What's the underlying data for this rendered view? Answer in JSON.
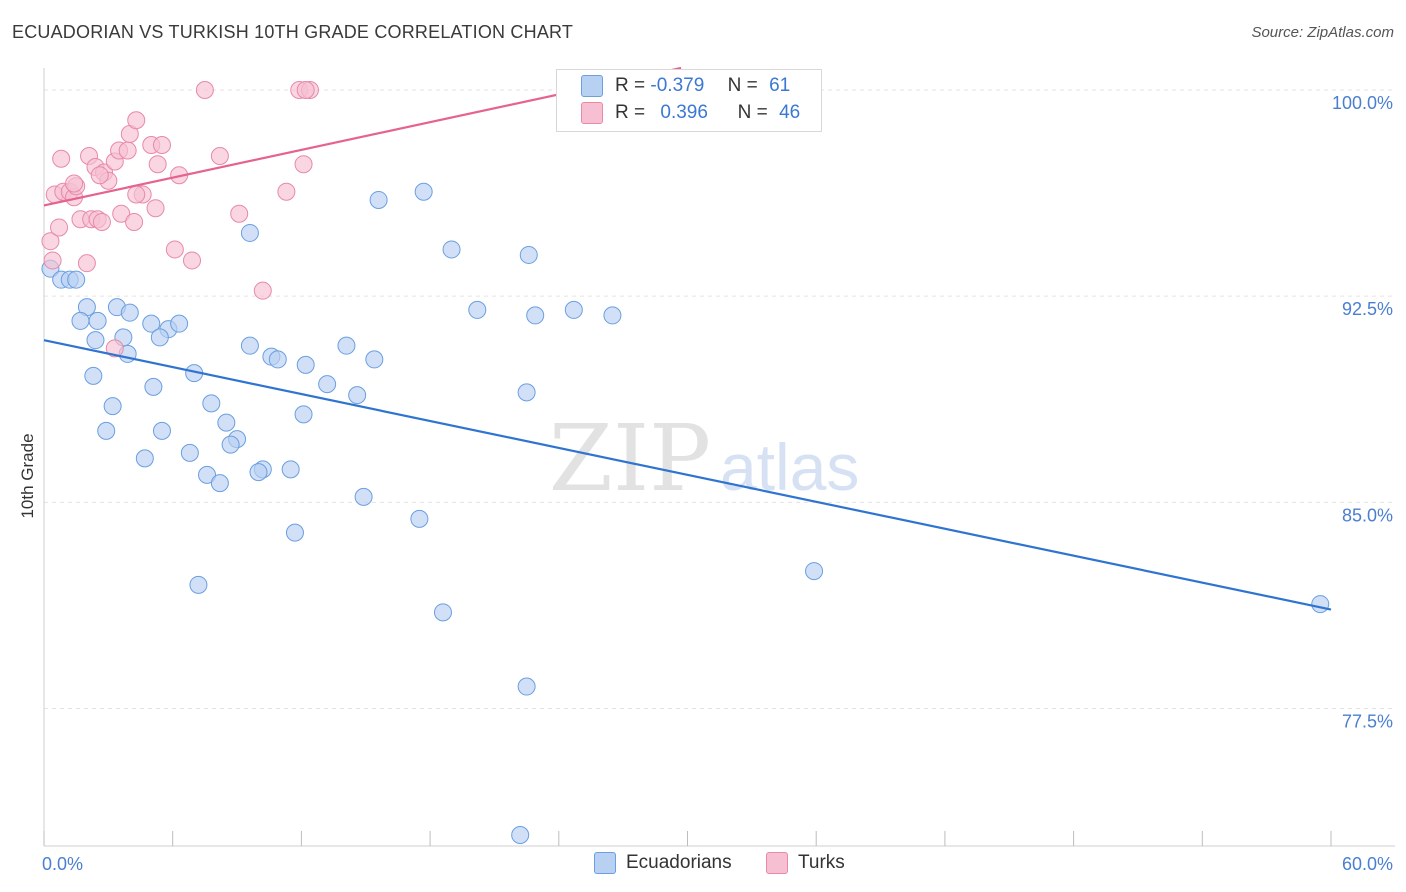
{
  "title": "ECUADORIAN VS TURKISH 10TH GRADE CORRELATION CHART",
  "source": "Source: ZipAtlas.com",
  "watermark": {
    "zip": "ZIP",
    "atlas": "atlas"
  },
  "legend": {
    "rows": [
      {
        "r_label": "R =",
        "r_value": "-0.379",
        "n_label": "N =",
        "n_value": "61"
      },
      {
        "r_label": "R =",
        "r_value": "0.396",
        "n_label": "N =",
        "n_value": "46"
      }
    ]
  },
  "bottom_legend": [
    "Ecuadorians",
    "Turks"
  ],
  "chart_data": {
    "type": "scatter",
    "title": "ECUADORIAN VS TURKISH 10TH GRADE CORRELATION CHART",
    "xlabel": "",
    "ylabel": "10th Grade",
    "xlim": [
      0,
      60
    ],
    "ylim": [
      72.5,
      100.8
    ],
    "x_tick_labels": [
      "0.0%",
      "60.0%"
    ],
    "y_ticks": [
      77.5,
      85.0,
      92.5,
      100.0
    ],
    "y_tick_labels": [
      "77.5%",
      "85.0%",
      "92.5%",
      "100.0%"
    ],
    "grid": true,
    "legend_position": "top-center",
    "series": [
      {
        "name": "Ecuadorians",
        "color": "#6a9fe0",
        "fill": "#b8d0f2",
        "r": -0.379,
        "n": 61,
        "trend": {
          "x": [
            0,
            60
          ],
          "y": [
            90.9,
            81.1
          ]
        },
        "points": [
          [
            0.3,
            93.5
          ],
          [
            0.8,
            93.1
          ],
          [
            1.2,
            93.1
          ],
          [
            2.0,
            92.1
          ],
          [
            2.5,
            91.6
          ],
          [
            3.4,
            92.1
          ],
          [
            4.0,
            91.9
          ],
          [
            1.7,
            91.6
          ],
          [
            5.0,
            91.5
          ],
          [
            5.8,
            91.3
          ],
          [
            6.3,
            91.5
          ],
          [
            2.4,
            90.9
          ],
          [
            3.9,
            90.4
          ],
          [
            5.4,
            91.0
          ],
          [
            9.6,
            90.7
          ],
          [
            10.6,
            90.3
          ],
          [
            10.9,
            90.2
          ],
          [
            12.2,
            90.0
          ],
          [
            14.1,
            90.7
          ],
          [
            15.4,
            90.2
          ],
          [
            2.3,
            89.6
          ],
          [
            7.0,
            89.7
          ],
          [
            5.1,
            89.2
          ],
          [
            13.2,
            89.3
          ],
          [
            14.6,
            88.9
          ],
          [
            22.5,
            89.0
          ],
          [
            3.2,
            88.5
          ],
          [
            7.8,
            88.6
          ],
          [
            12.1,
            88.2
          ],
          [
            2.9,
            87.6
          ],
          [
            5.5,
            87.6
          ],
          [
            8.5,
            87.9
          ],
          [
            9.0,
            87.3
          ],
          [
            6.8,
            86.8
          ],
          [
            4.7,
            86.6
          ],
          [
            8.7,
            87.1
          ],
          [
            10.2,
            86.2
          ],
          [
            10.0,
            86.1
          ],
          [
            11.5,
            86.2
          ],
          [
            7.6,
            86.0
          ],
          [
            8.2,
            85.7
          ],
          [
            14.9,
            85.2
          ],
          [
            17.5,
            84.4
          ],
          [
            11.7,
            83.9
          ],
          [
            7.2,
            82.0
          ],
          [
            18.6,
            81.0
          ],
          [
            22.5,
            78.3
          ],
          [
            35.9,
            82.5
          ],
          [
            59.5,
            81.3
          ],
          [
            15.6,
            96.0
          ],
          [
            17.7,
            96.3
          ],
          [
            9.6,
            94.8
          ],
          [
            19.0,
            94.2
          ],
          [
            22.6,
            94.0
          ],
          [
            20.2,
            92.0
          ],
          [
            22.9,
            91.8
          ],
          [
            24.7,
            92.0
          ],
          [
            26.5,
            91.8
          ],
          [
            22.2,
            72.9
          ],
          [
            1.5,
            93.1
          ],
          [
            3.7,
            91.0
          ]
        ]
      },
      {
        "name": "Turks",
        "color": "#e889a8",
        "fill": "#f6c0d2",
        "r": 0.396,
        "n": 46,
        "trend": {
          "x": [
            0,
            29.7
          ],
          "y": [
            95.8,
            100.8
          ]
        },
        "points": [
          [
            0.3,
            94.5
          ],
          [
            0.4,
            93.8
          ],
          [
            0.5,
            96.2
          ],
          [
            0.9,
            96.3
          ],
          [
            0.7,
            95.0
          ],
          [
            0.8,
            97.5
          ],
          [
            1.2,
            96.3
          ],
          [
            1.4,
            96.1
          ],
          [
            1.5,
            96.5
          ],
          [
            1.7,
            95.3
          ],
          [
            2.0,
            93.7
          ],
          [
            2.1,
            97.6
          ],
          [
            2.4,
            97.2
          ],
          [
            2.2,
            95.3
          ],
          [
            2.5,
            95.3
          ],
          [
            2.7,
            95.2
          ],
          [
            2.8,
            97.0
          ],
          [
            3.0,
            96.7
          ],
          [
            3.3,
            97.4
          ],
          [
            3.5,
            97.8
          ],
          [
            3.6,
            95.5
          ],
          [
            3.9,
            97.8
          ],
          [
            4.0,
            98.4
          ],
          [
            4.2,
            95.2
          ],
          [
            4.3,
            98.9
          ],
          [
            4.6,
            96.2
          ],
          [
            5.0,
            98.0
          ],
          [
            5.2,
            95.7
          ],
          [
            5.3,
            97.3
          ],
          [
            5.5,
            98.0
          ],
          [
            6.1,
            94.2
          ],
          [
            6.3,
            96.9
          ],
          [
            6.9,
            93.8
          ],
          [
            7.5,
            100.0
          ],
          [
            8.2,
            97.6
          ],
          [
            9.1,
            95.5
          ],
          [
            10.2,
            92.7
          ],
          [
            11.3,
            96.3
          ],
          [
            11.9,
            100.0
          ],
          [
            12.4,
            100.0
          ],
          [
            12.1,
            97.3
          ],
          [
            3.3,
            90.6
          ],
          [
            1.4,
            96.6
          ],
          [
            2.6,
            96.9
          ],
          [
            12.2,
            100.0
          ],
          [
            4.3,
            96.2
          ]
        ]
      }
    ]
  }
}
